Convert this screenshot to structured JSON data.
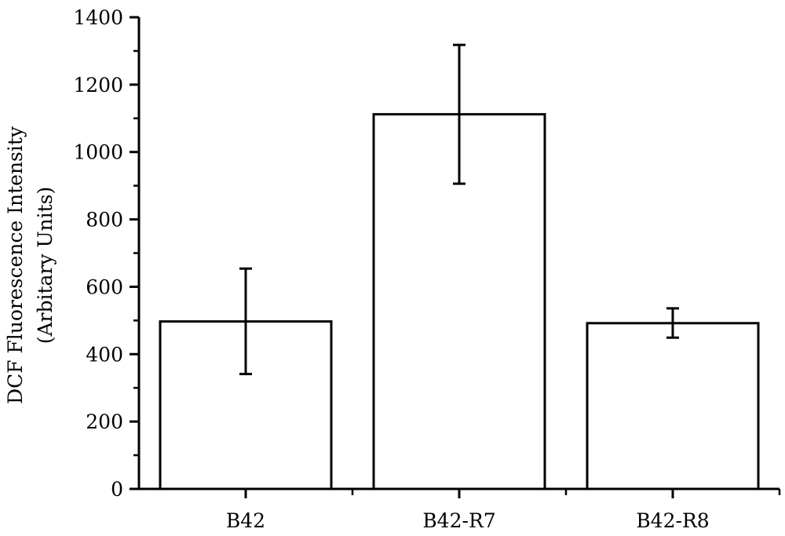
{
  "chart_data": {
    "type": "bar",
    "title": "",
    "ylabel_lines": [
      "DCF Fluorescence Intensity",
      "(Arbitary Units)"
    ],
    "xlabel": "",
    "categories": [
      "B42",
      "B42-R7",
      "B42-R8"
    ],
    "values": [
      497,
      1112,
      492
    ],
    "error_low": [
      341,
      906,
      449
    ],
    "error_high": [
      654,
      1318,
      536
    ],
    "ylim": [
      0,
      1400
    ],
    "yticks": [
      0,
      200,
      400,
      600,
      800,
      1000,
      1200,
      1400
    ],
    "grid": false,
    "legend": "none",
    "bar_fill": "#ffffff",
    "stroke_color": "#000000"
  }
}
